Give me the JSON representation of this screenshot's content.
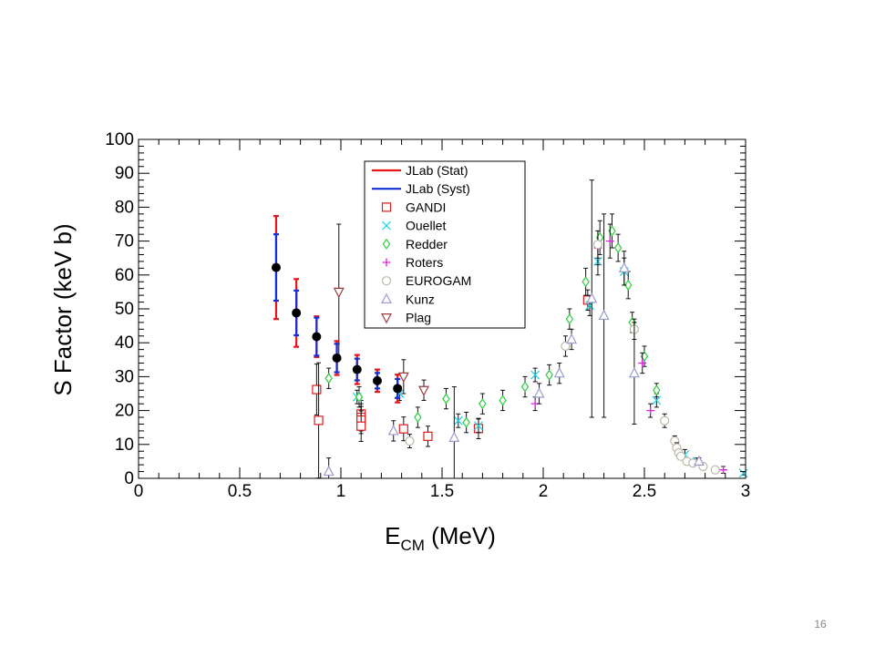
{
  "slide": {
    "page_number": "16"
  },
  "chart_data": {
    "type": "scatter",
    "title": "",
    "xlabel_main": "E",
    "xlabel_sub": "CM",
    "xlabel_unit": "(MeV)",
    "ylabel": "S Factor (keV b)",
    "xlim": [
      0,
      3
    ],
    "ylim": [
      0,
      100
    ],
    "x_ticks": [
      "0",
      "0.5",
      "1",
      "1.5",
      "2",
      "2.5",
      "3"
    ],
    "y_ticks": [
      "0",
      "10",
      "20",
      "30",
      "40",
      "50",
      "60",
      "70",
      "80",
      "90",
      "100"
    ],
    "grid": false,
    "legend_position": "top-center",
    "legend": [
      {
        "name": "JLab (Stat)",
        "marker": "line",
        "color": "#e8141b"
      },
      {
        "name": "JLab (Syst)",
        "marker": "line",
        "color": "#1030d8"
      },
      {
        "name": "GANDI",
        "marker": "open-square",
        "color": "#e01b1b"
      },
      {
        "name": "Ouellet",
        "marker": "x",
        "color": "#1fd3e6"
      },
      {
        "name": "Redder",
        "marker": "open-diamond",
        "color": "#2ecc40"
      },
      {
        "name": "Roters",
        "marker": "plus",
        "color": "#e21ee2"
      },
      {
        "name": "EUROGAM",
        "marker": "open-circle",
        "color": "#bdb7a6"
      },
      {
        "name": "Kunz",
        "marker": "open-triangle-up",
        "color": "#9b9bd0"
      },
      {
        "name": "Plag",
        "marker": "open-triangle-down",
        "color": "#9b3b3b"
      }
    ],
    "series": [
      {
        "name": "JLab (Stat)",
        "marker": "filled-circle",
        "color": "#000000",
        "x": [
          0.68,
          0.78,
          0.88,
          0.98,
          1.08,
          1.18,
          1.28
        ],
        "y": [
          62.2,
          48.8,
          41.8,
          35.5,
          32.1,
          28.8,
          26.5
        ],
        "err_stat": [
          15.2,
          10.0,
          6.0,
          5.0,
          4.3,
          3.3,
          4.1
        ],
        "err_syst": [
          9.8,
          6.6,
          5.6,
          4.2,
          3.2,
          2.3,
          2.8
        ]
      },
      {
        "name": "GANDI",
        "marker": "open-square",
        "color": "#e01b1b",
        "x": [
          0.88,
          0.89,
          1.1,
          1.1,
          1.1,
          1.1,
          1.31,
          1.43,
          1.68,
          2.22
        ],
        "y": [
          26.2,
          17.1,
          19.0,
          18.0,
          17.2,
          15.4,
          14.6,
          12.4,
          14.7,
          52.6
        ],
        "err": [
          7.5,
          17.0,
          4.0,
          4.0,
          4.0,
          4.5,
          3.5,
          3.0,
          3.0,
          3.0
        ]
      },
      {
        "name": "Ouellet",
        "marker": "x",
        "color": "#1fd3e6",
        "x": [
          1.08,
          1.29,
          1.58,
          1.68,
          1.96,
          2.23,
          2.27,
          2.4,
          2.56,
          2.7,
          2.76,
          2.99
        ],
        "y": [
          24.0,
          25.0,
          17.0,
          15.5,
          30.5,
          51.0,
          64.0,
          61.0,
          23.0,
          7.0,
          5.0,
          1.5
        ],
        "err": [
          2.0,
          2.0,
          2.0,
          2.0,
          2.0,
          3.0,
          4.0,
          4.0,
          2.0,
          1.5,
          1.0,
          0.5
        ]
      },
      {
        "name": "Redder",
        "marker": "open-diamond",
        "color": "#2ecc40",
        "x": [
          0.94,
          1.09,
          1.38,
          1.52,
          1.62,
          1.7,
          1.8,
          1.91,
          2.03,
          2.13,
          2.21,
          2.28,
          2.34,
          2.37,
          2.42,
          2.44,
          2.5,
          2.56
        ],
        "y": [
          29.5,
          24.0,
          18.0,
          23.5,
          16.5,
          22.0,
          23.0,
          27.0,
          30.5,
          47.0,
          58.0,
          71.0,
          73.0,
          68.0,
          57.0,
          46.0,
          36.0,
          26.0
        ],
        "err": [
          3.0,
          3.0,
          3.0,
          3.0,
          3.0,
          3.0,
          3.0,
          3.0,
          3.0,
          3.0,
          4.0,
          5.0,
          5.0,
          4.0,
          4.0,
          3.0,
          3.0,
          2.0
        ]
      },
      {
        "name": "Roters",
        "marker": "plus",
        "color": "#e21ee2",
        "x": [
          1.96,
          2.27,
          2.33,
          2.49,
          2.53,
          2.89
        ],
        "y": [
          22.0,
          68.0,
          70.0,
          34.0,
          20.0,
          2.5
        ],
        "err": [
          2.0,
          5.0,
          5.0,
          3.0,
          2.0,
          1.0
        ]
      },
      {
        "name": "EUROGAM",
        "marker": "open-circle",
        "color": "#bdb7a6",
        "x": [
          1.34,
          2.11,
          2.27,
          2.45,
          2.6,
          2.65,
          2.66,
          2.67,
          2.68,
          2.71,
          2.74,
          2.79,
          2.85
        ],
        "y": [
          11.0,
          39.0,
          69.0,
          44.0,
          17.0,
          11.0,
          9.0,
          7.5,
          6.5,
          5.0,
          4.5,
          3.5,
          2.5
        ],
        "err": [
          2.0,
          3.0,
          4.0,
          3.0,
          2.0,
          1.5,
          1.5,
          1.0,
          1.0,
          1.0,
          1.0,
          1.0,
          0.5
        ]
      },
      {
        "name": "Kunz",
        "marker": "open-triangle-up",
        "color": "#9b9bd0",
        "x": [
          0.94,
          1.26,
          1.56,
          1.98,
          2.08,
          2.14,
          2.24,
          2.3,
          2.4,
          2.45,
          2.77
        ],
        "y": [
          2.0,
          14.0,
          12.0,
          25.0,
          31.0,
          41.0,
          53.0,
          48.0,
          62.0,
          31.0,
          5.0
        ],
        "err": [
          4.0,
          3.0,
          15.0,
          3.0,
          3.0,
          3.0,
          35.0,
          30.0,
          5.0,
          15.0,
          1.0
        ]
      },
      {
        "name": "Plag",
        "marker": "open-triangle-down",
        "color": "#9b3b3b",
        "x": [
          0.99,
          1.31,
          1.41
        ],
        "y": [
          55.0,
          30.0,
          26.0
        ],
        "err": [
          20.0,
          5.0,
          3.0
        ]
      }
    ]
  }
}
